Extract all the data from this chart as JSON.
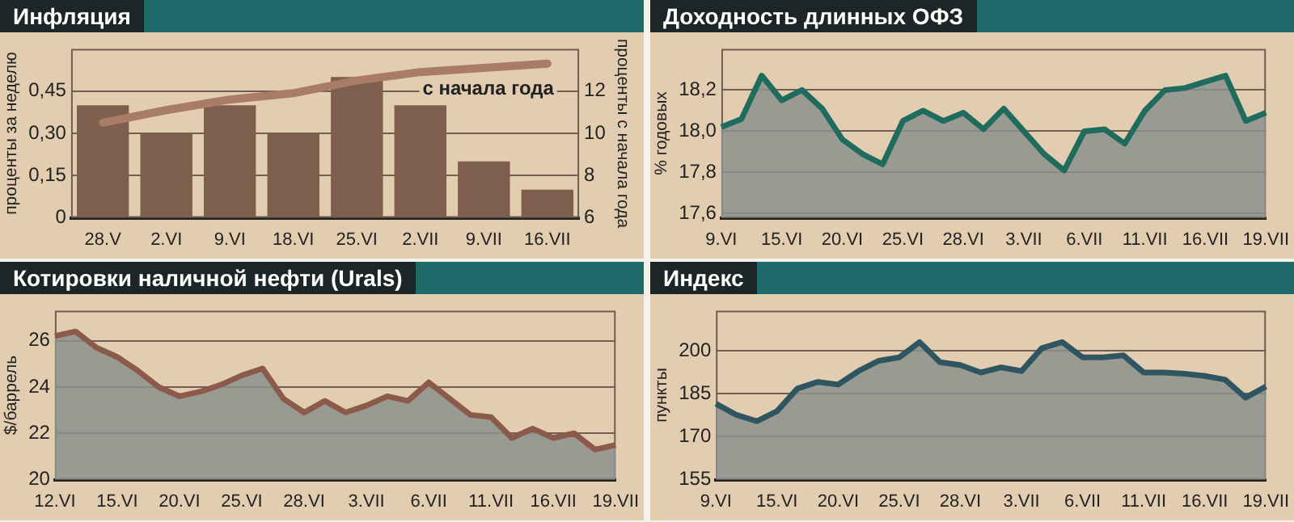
{
  "chart_data": [
    {
      "type": "bar",
      "title": "Инфляция",
      "ylabel": "проценты за неделю",
      "y2label": "проценты с начала года",
      "categories": [
        "28.V",
        "2.VI",
        "9.VI",
        "18.VI",
        "25.VI",
        "2.VII",
        "9.VII",
        "16.VII"
      ],
      "series": [
        {
          "type": "bar",
          "color": "#7e5f4d",
          "values": [
            0.4,
            0.3,
            0.4,
            0.3,
            0.5,
            0.4,
            0.2,
            0.1
          ]
        },
        {
          "type": "line",
          "name": "с начала года",
          "axis": "y2",
          "color": "#a87c66",
          "values": [
            10.5,
            11.1,
            11.6,
            11.9,
            12.5,
            12.9,
            13.1,
            13.3
          ]
        }
      ],
      "ylim": [
        0,
        0.6
      ],
      "yticks": [
        0,
        {
          "value": 0.15,
          "label": "0,15"
        },
        {
          "value": 0.3,
          "label": "0,30"
        },
        {
          "value": 0.45,
          "label": "0,45"
        }
      ],
      "y2lim": [
        6,
        14
      ],
      "y2ticks": [
        6,
        8,
        10,
        12
      ],
      "grid": "y",
      "legend": false
    },
    {
      "type": "area",
      "title": "Доходность длинных ОФЗ",
      "ylabel": "% годовых",
      "categories": [
        "9.VI",
        null,
        null,
        "15.VI",
        null,
        null,
        "20.VI",
        null,
        null,
        "25.VI",
        null,
        null,
        "28.VI",
        null,
        null,
        "3.VII",
        null,
        null,
        "6.VII",
        null,
        null,
        "11.VII",
        null,
        null,
        "16.VII",
        null,
        null,
        "19.VII"
      ],
      "series": [
        {
          "color": "#1f6b5e",
          "values": [
            18.02,
            18.06,
            18.27,
            18.15,
            18.2,
            18.11,
            17.96,
            17.89,
            17.84,
            18.05,
            18.1,
            18.05,
            18.09,
            18.01,
            18.11,
            18.0,
            17.89,
            17.81,
            18.0,
            18.01,
            17.94,
            18.1,
            18.2,
            18.21,
            18.24,
            18.27,
            18.05,
            18.09
          ]
        }
      ],
      "ylim": [
        17.58,
        18.4
      ],
      "yticks": [
        {
          "value": 17.6,
          "label": "17,6"
        },
        {
          "value": 17.8,
          "label": "17,8"
        },
        {
          "value": 18.0,
          "label": "18,0"
        },
        {
          "value": 18.2,
          "label": "18,2"
        }
      ],
      "grid": "y",
      "legend": false
    },
    {
      "type": "area",
      "title": "Котировки наличной нефти (Urals)",
      "ylabel": "$/баррель",
      "categories": [
        "12.VI",
        null,
        null,
        "15.VI",
        null,
        null,
        "20.VI",
        null,
        null,
        "25.VI",
        null,
        null,
        "28.VI",
        null,
        null,
        "3.VII",
        null,
        null,
        "6.VII",
        null,
        null,
        "11.VII",
        null,
        null,
        "16.VII",
        null,
        null,
        "19.VII"
      ],
      "series": [
        {
          "color": "#8b5a4a",
          "values": [
            26.2,
            26.4,
            25.7,
            25.3,
            24.7,
            24.0,
            23.6,
            23.8,
            24.1,
            24.5,
            24.8,
            23.5,
            22.9,
            23.4,
            22.9,
            23.2,
            23.6,
            23.4,
            24.2,
            23.5,
            22.8,
            22.7,
            21.8,
            22.2,
            21.8,
            22.0,
            21.3,
            21.5
          ]
        }
      ],
      "ylim": [
        20,
        27.3
      ],
      "yticks": [
        20,
        22,
        24,
        26
      ],
      "grid": "y",
      "legend": false
    },
    {
      "type": "area",
      "title": "Индекс",
      "ylabel": "пункты",
      "categories": [
        "9.VI",
        null,
        null,
        "15.VI",
        null,
        null,
        "20.VI",
        null,
        null,
        "25.VI",
        null,
        null,
        "28.VI",
        null,
        null,
        "3.VII",
        null,
        null,
        "6.VII",
        null,
        null,
        "11.VII",
        null,
        null,
        "16.VII",
        null,
        null,
        "19.VII"
      ],
      "series": [
        {
          "color": "#2f5560",
          "values": [
            181.5,
            177.6,
            175.4,
            178.9,
            186.8,
            189.1,
            188.2,
            192.9,
            196.5,
            197.7,
            203,
            196,
            195,
            192.4,
            194.2,
            192.9,
            200.9,
            203,
            197.7,
            197.7,
            198.4,
            192.4,
            192.4,
            192,
            191.2,
            189.9,
            183.6,
            187.5
          ]
        }
      ],
      "ylim": [
        155,
        214
      ],
      "yticks": [
        155,
        170,
        185,
        200
      ],
      "grid": "y",
      "legend": false
    }
  ]
}
